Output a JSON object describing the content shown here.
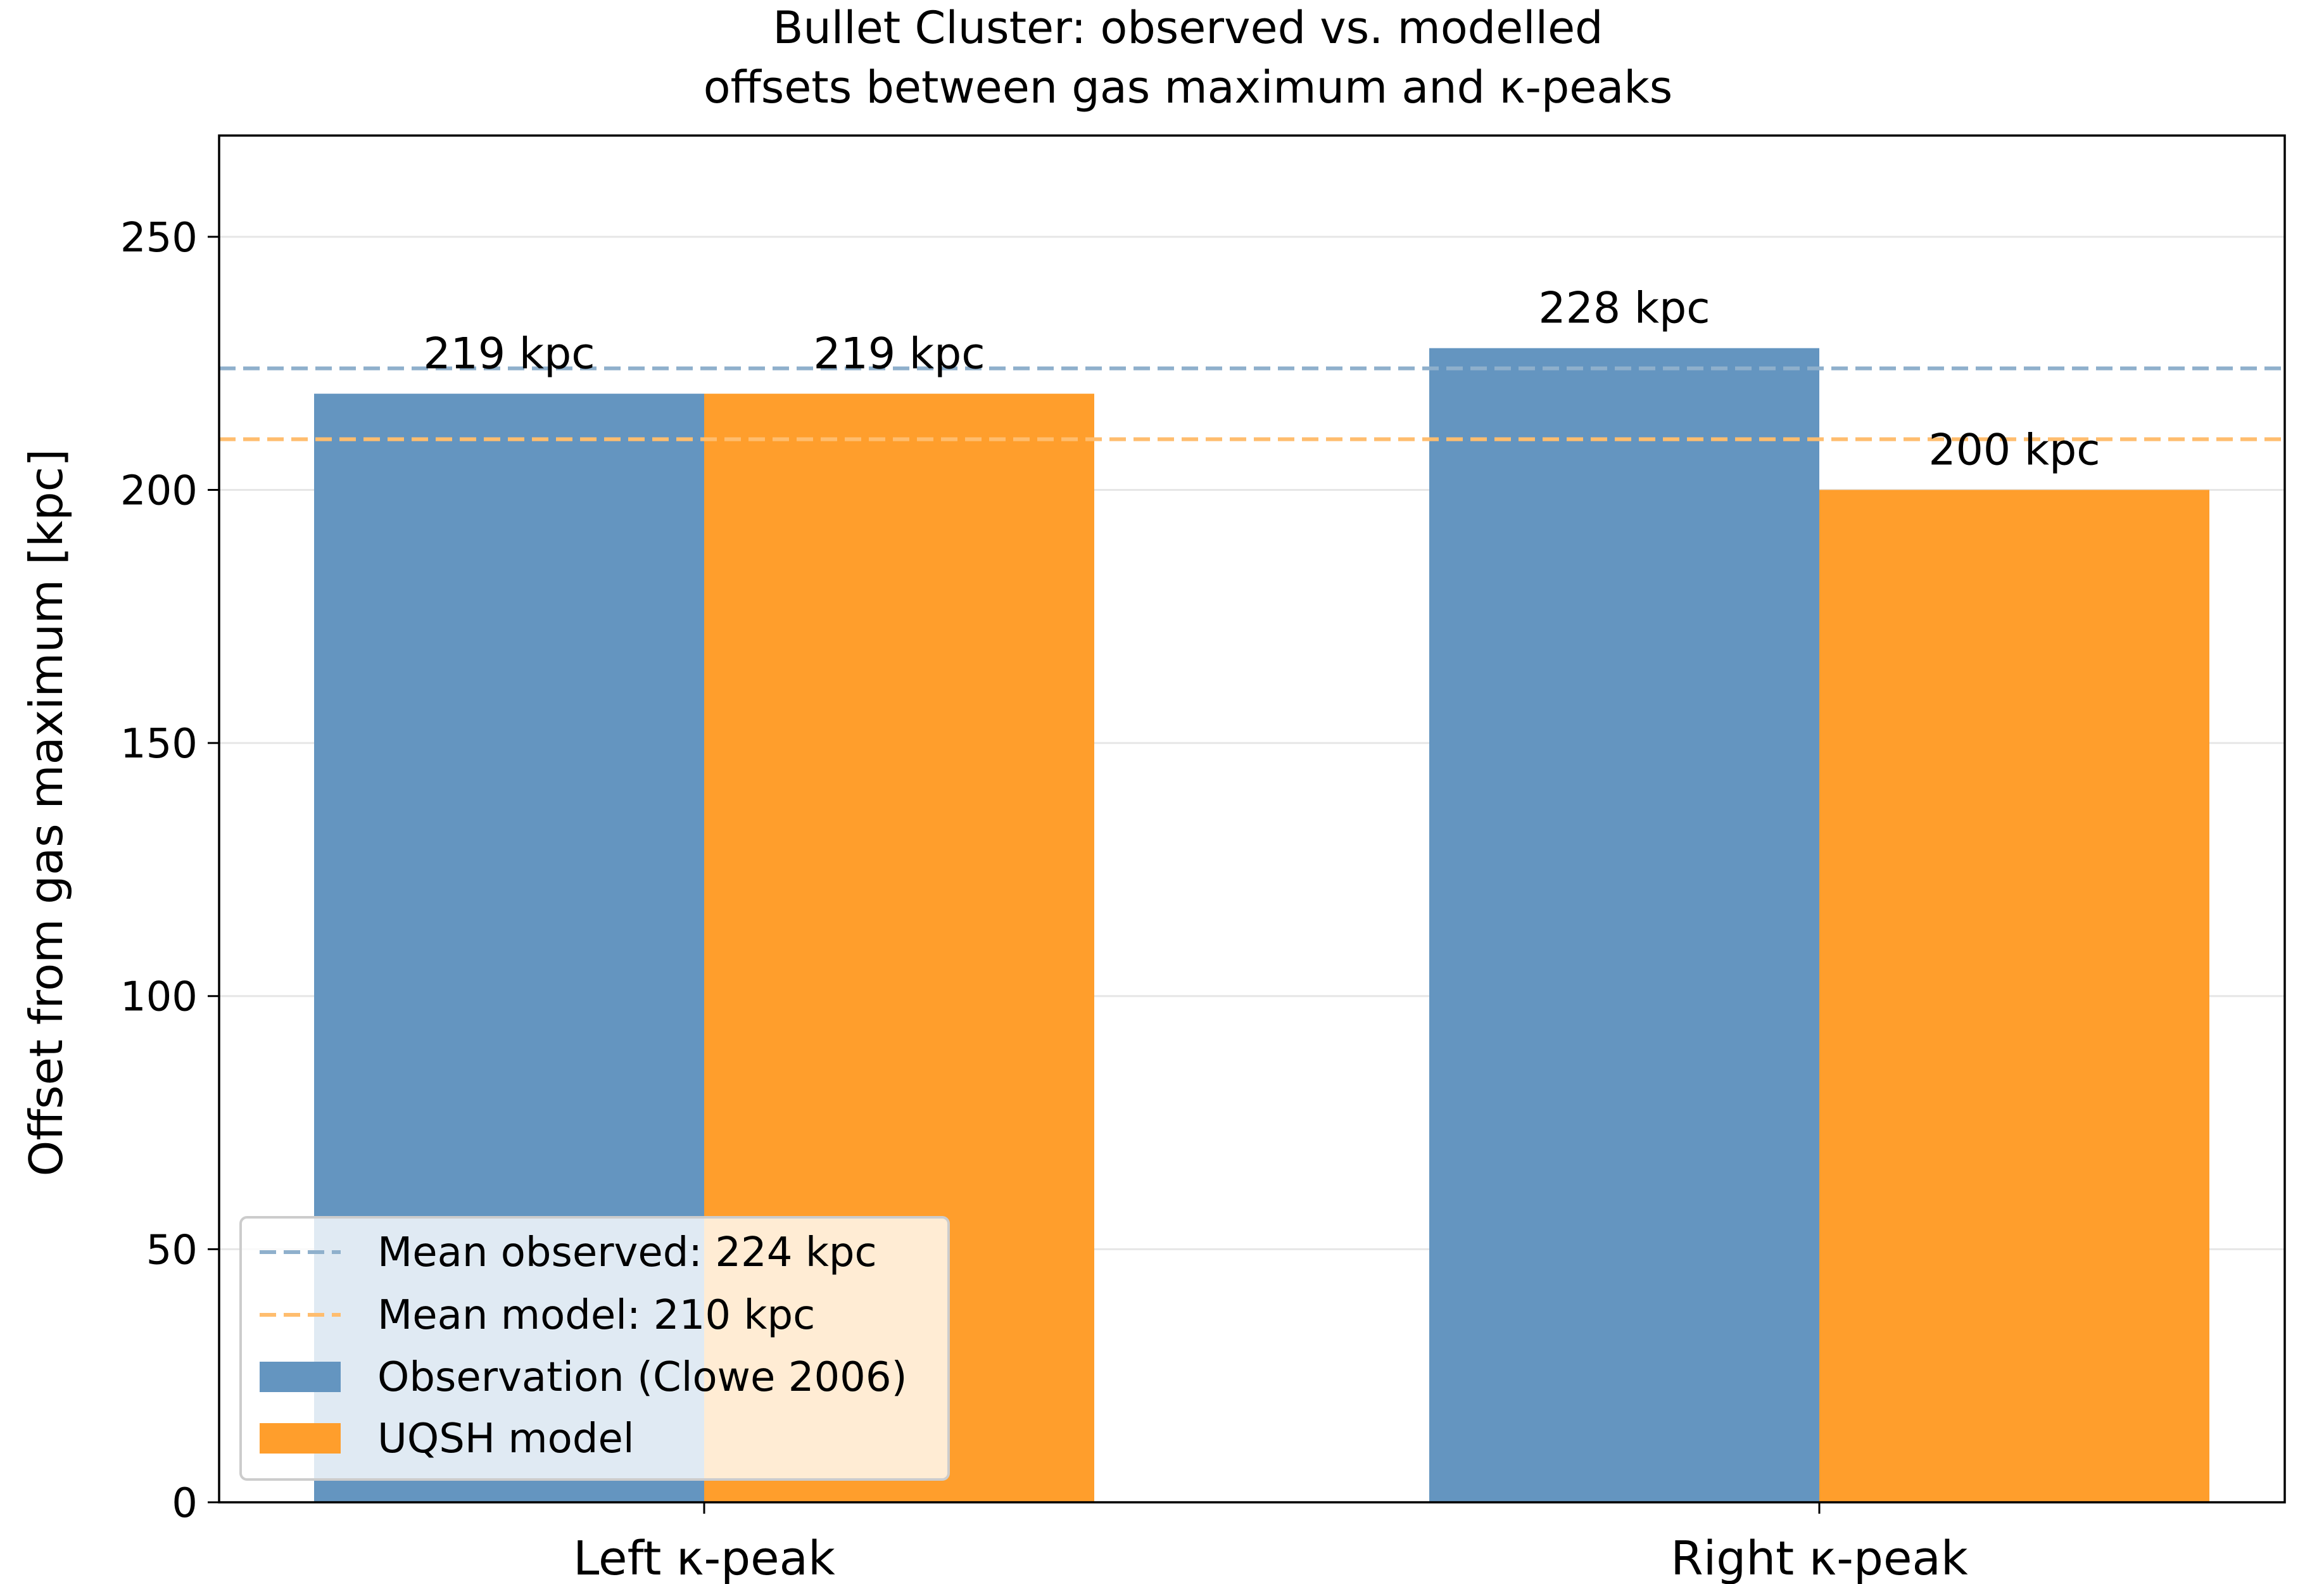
{
  "chart_data": {
    "type": "bar",
    "title": [
      "Bullet Cluster: observed vs. modelled",
      "offsets between gas maximum and κ-peaks"
    ],
    "xlabel": "",
    "ylabel": "Offset from gas maximum [kpc]",
    "ylim": [
      0,
      270
    ],
    "yticks": [
      0,
      50,
      100,
      150,
      200,
      250
    ],
    "categories": [
      "Left κ-peak",
      "Right κ-peak"
    ],
    "series": [
      {
        "name": "Observation (Clowe 2006)",
        "values": [
          219,
          228
        ],
        "color": "#6495c0",
        "labels": [
          "219 kpc",
          "228 kpc"
        ]
      },
      {
        "name": "UQSH model",
        "values": [
          219,
          200
        ],
        "color": "#ff9e2c",
        "labels": [
          "219 kpc",
          "200 kpc"
        ]
      }
    ],
    "reference_lines": [
      {
        "name": "Mean observed: 224 kpc",
        "value": 224,
        "color": "#8fb0cc",
        "style": "dashed"
      },
      {
        "name": "Mean model: 210 kpc",
        "value": 210,
        "color": "#ffbd6e",
        "style": "dashed"
      }
    ],
    "grid": {
      "y": true,
      "x": false
    },
    "legend": {
      "placement": "lower-left"
    }
  }
}
